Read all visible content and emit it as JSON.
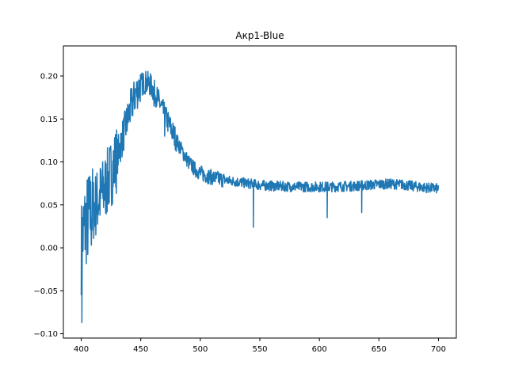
{
  "chart_data": {
    "type": "line",
    "title": "Aкp1-Blue",
    "xlabel": "",
    "ylabel": "",
    "xlim": [
      385,
      715
    ],
    "ylim": [
      -0.105,
      0.235
    ],
    "grid": false,
    "xticks": [
      400,
      450,
      500,
      550,
      600,
      650,
      700
    ],
    "xtick_labels": [
      "400",
      "450",
      "500",
      "550",
      "600",
      "650",
      "700"
    ],
    "yticks": [
      -0.1,
      -0.05,
      0.0,
      0.05,
      0.1,
      0.15,
      0.2
    ],
    "ytick_labels": [
      "−0.10",
      "−0.05",
      "0.00",
      "0.05",
      "0.10",
      "0.15",
      "0.20"
    ],
    "series": [
      {
        "color": "#1f77b4",
        "x": [
          400,
          402,
          404,
          406,
          408,
          410,
          412,
          414,
          416,
          418,
          420,
          423,
          426,
          430,
          434,
          438,
          442,
          446,
          450,
          454,
          458,
          462,
          466,
          470,
          475,
          480,
          485,
          490,
          495,
          500,
          505,
          510,
          520,
          530,
          540,
          550,
          560,
          570,
          580,
          590,
          600,
          610,
          620,
          630,
          640,
          650,
          660,
          670,
          680,
          690,
          700
        ],
        "y": [
          0.0,
          0.02,
          0.03,
          0.035,
          0.04,
          0.045,
          0.05,
          0.055,
          0.06,
          0.065,
          0.07,
          0.08,
          0.09,
          0.105,
          0.125,
          0.145,
          0.165,
          0.18,
          0.19,
          0.193,
          0.19,
          0.18,
          0.168,
          0.155,
          0.14,
          0.125,
          0.112,
          0.1,
          0.092,
          0.087,
          0.084,
          0.082,
          0.079,
          0.077,
          0.075,
          0.073,
          0.072,
          0.0715,
          0.071,
          0.071,
          0.071,
          0.071,
          0.0715,
          0.072,
          0.073,
          0.074,
          0.0745,
          0.0735,
          0.0715,
          0.07,
          0.069
        ],
        "spikes": [
          {
            "x": 400.5,
            "y": -0.087
          },
          {
            "x": 544.5,
            "y": 0.024
          },
          {
            "x": 606.5,
            "y": 0.035
          },
          {
            "x": 635.5,
            "y": 0.041
          },
          {
            "x": 461,
            "y": 0.165
          },
          {
            "x": 470,
            "y": 0.13
          }
        ]
      }
    ]
  }
}
